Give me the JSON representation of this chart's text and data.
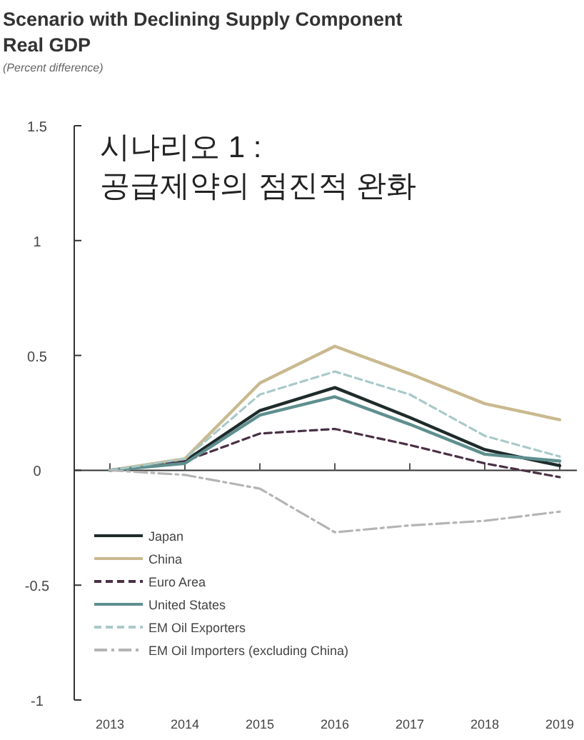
{
  "chart_data": {
    "type": "line",
    "title": "Scenario with Declining Supply Component",
    "subtitle": "Real GDP",
    "ylabel": "(Percent difference)",
    "annotations": [
      "시나리오 1 : 공급제약의 점진적 완화"
    ],
    "categories": [
      "2013",
      "2014",
      "2015",
      "2016",
      "2017",
      "2018",
      "2019"
    ],
    "ylim": [
      -1,
      1.5
    ],
    "yticks": [
      -1,
      -0.5,
      0,
      0.5,
      1,
      1.5
    ],
    "legend": "bottom left",
    "marker": "none",
    "series": [
      {
        "name": "Japan",
        "color": "#1f2b2b",
        "line_style": "solid",
        "values": [
          0,
          0.04,
          0.26,
          0.36,
          0.23,
          0.09,
          0.02
        ]
      },
      {
        "name": "China",
        "color": "#c9b98f",
        "line_style": "solid",
        "values": [
          0,
          0.05,
          0.38,
          0.54,
          0.42,
          0.29,
          0.22
        ]
      },
      {
        "name": "Euro Area",
        "color": "#4a3045",
        "line_style": "dashed",
        "values": [
          0,
          0.04,
          0.16,
          0.18,
          0.11,
          0.03,
          -0.03
        ]
      },
      {
        "name": "United States",
        "color": "#5f8f8f",
        "line_style": "solid",
        "values": [
          0,
          0.03,
          0.24,
          0.32,
          0.2,
          0.07,
          0.04
        ]
      },
      {
        "name": "EM Oil Exporters",
        "color": "#a9c9c9",
        "line_style": "dashed",
        "values": [
          0,
          0.05,
          0.33,
          0.43,
          0.33,
          0.15,
          0.06
        ]
      },
      {
        "name": "EM Oil Importers (excluding China)",
        "color": "#b4b4b4",
        "line_style": "dashdot",
        "values": [
          0,
          -0.02,
          -0.08,
          -0.27,
          -0.24,
          -0.22,
          -0.18
        ]
      }
    ]
  }
}
